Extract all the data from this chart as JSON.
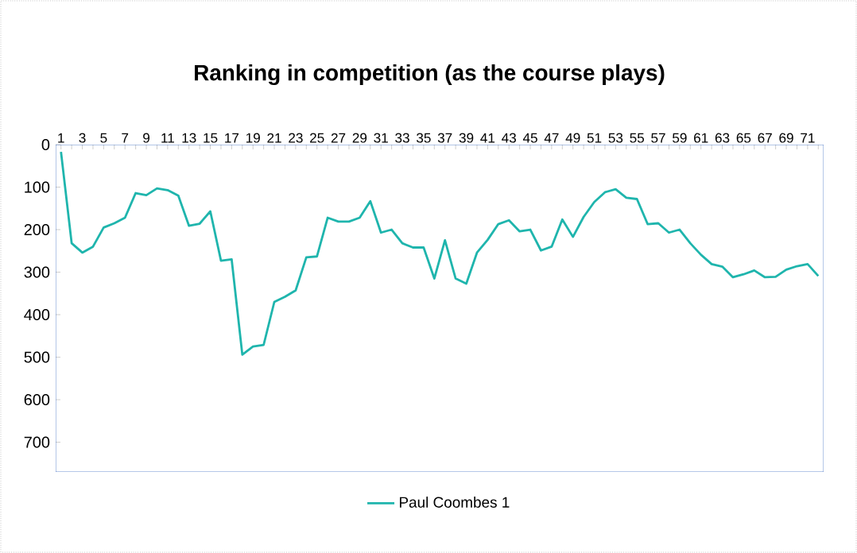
{
  "chart_data": {
    "type": "line",
    "title": "Ranking in competition (as the course plays)",
    "categories": [
      "1",
      null,
      "3",
      null,
      "5",
      null,
      "7",
      null,
      "9",
      null,
      "11",
      null,
      "13",
      null,
      "15",
      null,
      "17",
      null,
      "19",
      null,
      "21",
      null,
      "23",
      null,
      "25",
      null,
      "27",
      null,
      "29",
      null,
      "31",
      null,
      "33",
      null,
      "35",
      null,
      "37",
      null,
      "39",
      null,
      "41",
      null,
      "43",
      null,
      "45",
      null,
      "47",
      null,
      "49",
      null,
      "51",
      null,
      "53",
      null,
      "55",
      null,
      "57",
      null,
      "59",
      null,
      "61",
      null,
      "63",
      null,
      "65",
      null,
      "67",
      null,
      "69",
      null,
      "71",
      null
    ],
    "series": [
      {
        "name": "Paul Coombes 1",
        "color": "#1fb5ad",
        "values": [
          17,
          232,
          254,
          240,
          195,
          185,
          172,
          114,
          119,
          103,
          107,
          120,
          191,
          186,
          157,
          273,
          270,
          494,
          475,
          471,
          370,
          358,
          343,
          265,
          263,
          172,
          181,
          181,
          172,
          133,
          207,
          200,
          232,
          242,
          242,
          315,
          225,
          315,
          327,
          254,
          224,
          187,
          178,
          204,
          200,
          249,
          240,
          176,
          217,
          170,
          135,
          112,
          105,
          125,
          128,
          187,
          185,
          207,
          200,
          232,
          259,
          281,
          287,
          312,
          305,
          296,
          312,
          311,
          294,
          286,
          281,
          309
        ]
      }
    ],
    "ylim": [
      770,
      0
    ],
    "yticks": [
      0,
      100,
      200,
      300,
      400,
      500,
      600,
      700
    ],
    "grid": false,
    "legend": "bottom",
    "marker": "none",
    "line_style": "solid"
  }
}
